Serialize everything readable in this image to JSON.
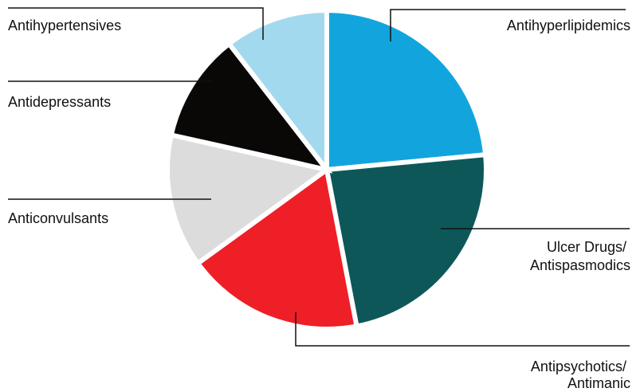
{
  "chart_data": {
    "type": "pie",
    "title": "",
    "start_angle_deg": 0,
    "direction": "clockwise",
    "slices": [
      {
        "label": "Antihyperlipidemics",
        "value": 23.5,
        "color": "#12a5dd"
      },
      {
        "label": "Ulcer Drugs/ Antispasmodics",
        "value": 23.5,
        "color": "#0d5759"
      },
      {
        "label": "Antipsychotics/ Antimanic",
        "value": 18.0,
        "color": "#ee1f27"
      },
      {
        "label": "Anticonvulsants",
        "value": 13.5,
        "color": "#dcdcdc"
      },
      {
        "label": "Antidepressants",
        "value": 11.0,
        "color": "#0a0707"
      },
      {
        "label": "Antihypertensives",
        "value": 10.5,
        "color": "#a3d9ee"
      }
    ]
  }
}
